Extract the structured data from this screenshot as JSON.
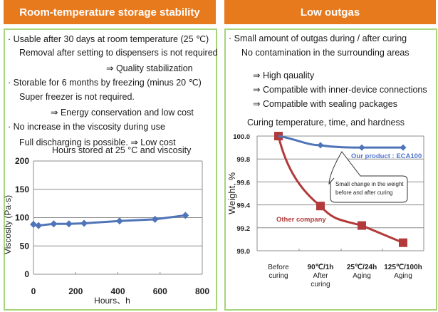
{
  "left": {
    "header": "Room-temperature storage stability",
    "lines": [
      "· Usable after 30 days at room temperature (25 ℃)",
      "Removal after setting to dispensers is not required",
      "⇒ Quality stabilization",
      "· Storable for 6 months by freezing (minus 20 ℃)",
      "Super freezer is not required.",
      "⇒ Energy conservation and low cost",
      "· No increase in the viscosity during use",
      "Full discharging is possible. ⇒ Low cost"
    ]
  },
  "right": {
    "header": "Low outgas",
    "lines": [
      "· Small amount of outgas during / after curing",
      "No contamination in the surrounding areas",
      "⇒ High qauality",
      "⇒ Compatible with inner-device connections",
      "⇒ Compatible with sealing packages"
    ]
  },
  "chart_data": [
    {
      "type": "line",
      "title": "Hours stored at 25 °C and viscosity",
      "xlabel": "Hours、h",
      "ylabel": "Viscosity (Pa·s)",
      "xlim": [
        0,
        800
      ],
      "ylim": [
        0,
        200
      ],
      "xticks": [
        "0",
        "200",
        "400",
        "600",
        "800"
      ],
      "yticks": [
        "0",
        "50",
        "100",
        "150",
        "200"
      ],
      "grid": true,
      "color": "#4f74b8",
      "x": [
        0,
        24,
        96,
        168,
        240,
        408,
        576,
        720
      ],
      "values": [
        88,
        86,
        89,
        89,
        90,
        94,
        97,
        104
      ]
    },
    {
      "type": "line",
      "title": "Curing temperature, time, and hardness",
      "xlabel": "",
      "ylabel": "Weight, %",
      "ylim": [
        99.0,
        100.0
      ],
      "yticks": [
        "99.0",
        "99.2",
        "99.4",
        "99.6",
        "99.8",
        "100.0"
      ],
      "grid": true,
      "categories": [
        {
          "top": "Before",
          "mid": "curing",
          "bot": ""
        },
        {
          "top": "90℃/1h",
          "mid": "After",
          "bot": "curing"
        },
        {
          "top": "25℃/24h",
          "mid": "Aging",
          "bot": ""
        },
        {
          "top": "125℃/100h",
          "mid": "Aging",
          "bot": ""
        }
      ],
      "series": [
        {
          "name": "Our product : ECA100",
          "color": "#4f74b8",
          "values": [
            100.0,
            99.92,
            99.9,
            99.9
          ]
        },
        {
          "name": "Other company",
          "color": "#b23a3a",
          "values": [
            100.0,
            99.39,
            99.22,
            99.07
          ]
        }
      ],
      "annotation": [
        "Small change in the weight",
        "before and after curing"
      ]
    }
  ]
}
